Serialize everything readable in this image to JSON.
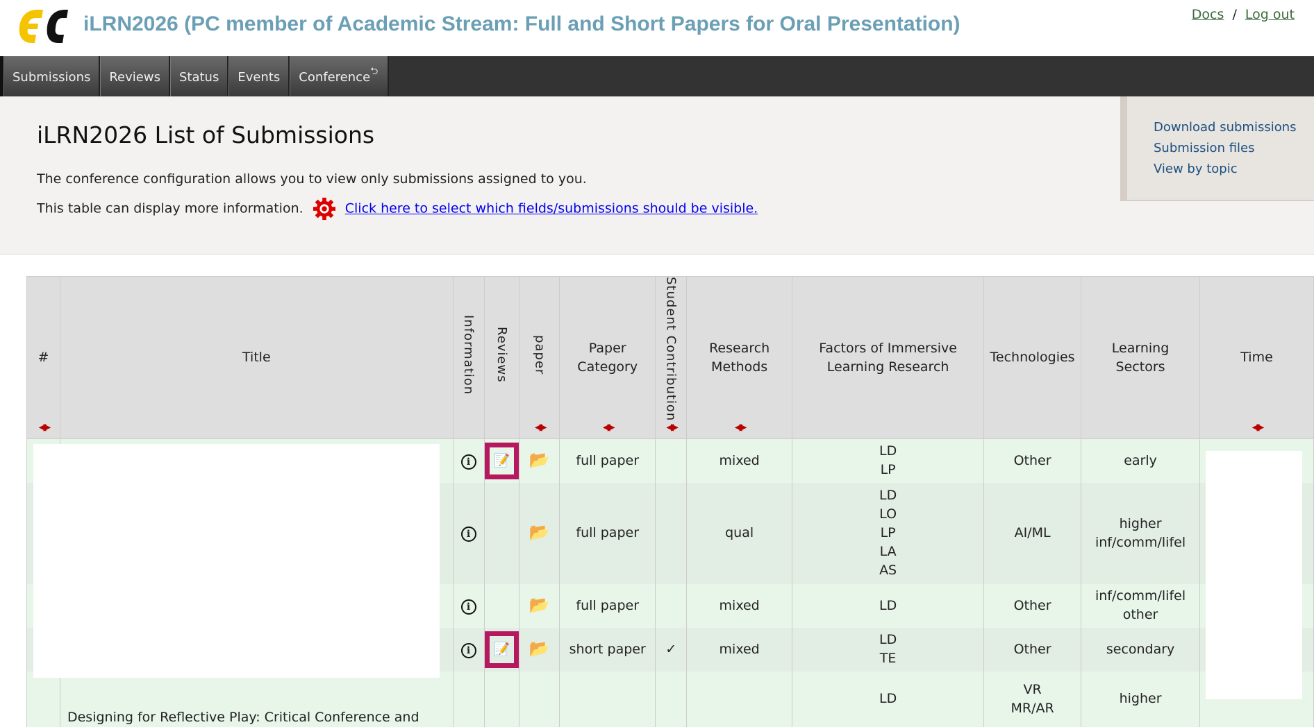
{
  "header": {
    "app_title": "iLRN2026 (PC member of Academic Stream: Full and Short Papers for Oral Presentation)",
    "docs": "Docs",
    "sep": "/",
    "logout": "Log out"
  },
  "nav": {
    "tabs": [
      "Submissions",
      "Reviews",
      "Status",
      "Events",
      "Conference"
    ]
  },
  "page": {
    "title": "iLRN2026 List of Submissions",
    "info1": "The conference configuration allows you to view only submissions assigned to you.",
    "info2": "This table can display more information.",
    "select_link": "Click here to select which fields/submissions should be visible."
  },
  "side": {
    "links": [
      "Download submissions",
      "Submission files",
      "View by topic"
    ]
  },
  "colors": {
    "title": "#6a9fb5",
    "nav": "#333333",
    "review_highlight": "#b5185f",
    "row_a": "#e8f5e9",
    "row_b": "#e2ede3"
  },
  "table": {
    "headers": [
      "#",
      "Title",
      "Information",
      "Reviews",
      "paper",
      "Paper Category",
      "Student Contribution",
      "Research Methods",
      "Factors of Immersive Learning Research",
      "Technologies",
      "Learning Sectors",
      "Time"
    ],
    "rows": [
      {
        "title": "",
        "category": "full paper",
        "student": "",
        "methods": "mixed",
        "factors": [
          "LD",
          "LP"
        ],
        "tech": [
          "Other"
        ],
        "sectors": [
          "early"
        ],
        "review": true
      },
      {
        "title": "",
        "category": "full paper",
        "student": "",
        "methods": "qual",
        "factors": [
          "LD",
          "LO",
          "LP",
          "LA",
          "AS"
        ],
        "tech": [
          "AI/ML"
        ],
        "sectors": [
          "higher",
          "inf/comm/lifel"
        ],
        "review": false
      },
      {
        "title": "",
        "category": "full paper",
        "student": "",
        "methods": "mixed",
        "factors": [
          "LD"
        ],
        "tech": [
          "Other"
        ],
        "sectors": [
          "inf/comm/lifel",
          "other"
        ],
        "review": false
      },
      {
        "title": "",
        "category": "short paper",
        "student": "✓",
        "methods": "mixed",
        "factors": [
          "LD",
          "TE"
        ],
        "tech": [
          "Other"
        ],
        "sectors": [
          "secondary"
        ],
        "review": true
      },
      {
        "title": "Designing for Reflective Play: Critical Conference and",
        "category": "",
        "student": "",
        "methods": "",
        "factors": [
          "LD"
        ],
        "tech": [
          "VR",
          "MR/AR"
        ],
        "sectors": [
          "higher"
        ],
        "review": false
      }
    ]
  }
}
